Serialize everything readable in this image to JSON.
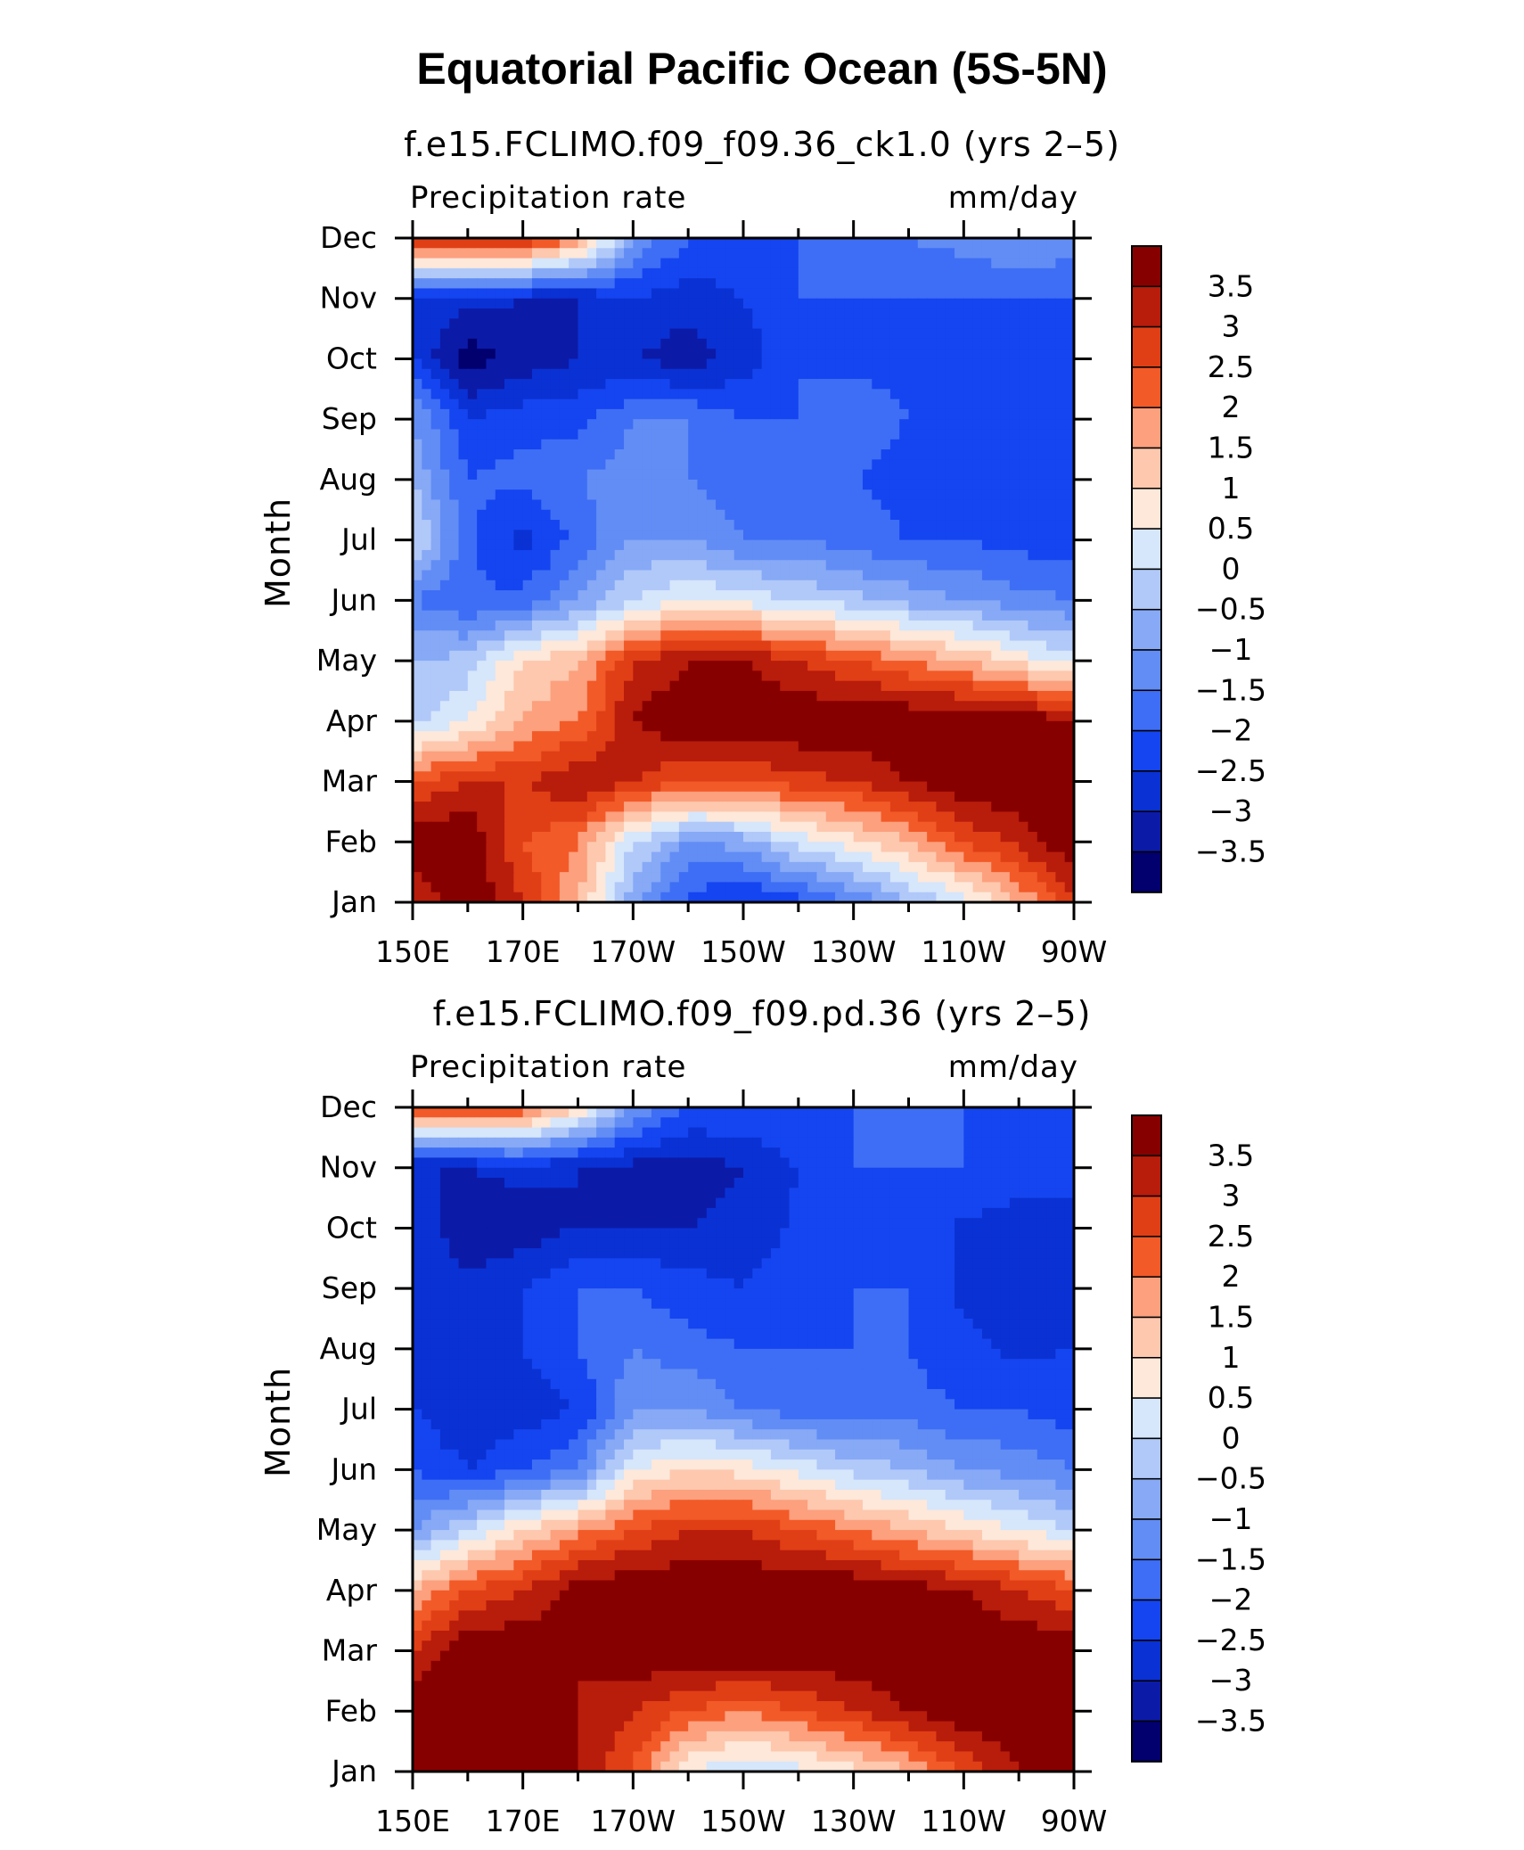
{
  "main_title": "Equatorial Pacific Ocean (5S-5N)",
  "chart_data": [
    {
      "type": "heatmap",
      "title": "f.e15.FCLIMO.f09_f09.36_ck1.0 (yrs 2–5)",
      "left_label": "Precipitation rate",
      "right_label": "mm/day",
      "xlabel": "",
      "ylabel": "Month",
      "x_ticks": [
        "150E",
        "170E",
        "170W",
        "150W",
        "130W",
        "110W",
        "90W"
      ],
      "x_lon": [
        150,
        170,
        190,
        210,
        230,
        250,
        270
      ],
      "xlim": [
        150,
        270
      ],
      "y_ticks": [
        "Jan",
        "Feb",
        "Mar",
        "Apr",
        "May",
        "Jun",
        "Jul",
        "Aug",
        "Sep",
        "Oct",
        "Nov",
        "Dec"
      ],
      "ylim": [
        1,
        12
      ],
      "colorbar": {
        "levels": [
          -3.5,
          -3,
          -2.5,
          -2,
          -1.5,
          -1,
          -0.5,
          0,
          0.5,
          1,
          1.5,
          2,
          2.5,
          3,
          3.5
        ],
        "labels": [
          "−3.5",
          "−3",
          "−2.5",
          "−2",
          "−1.5",
          "−1",
          "−0.5",
          "0",
          "0.5",
          "1",
          "1.5",
          "2",
          "2.5",
          "3",
          "3.5"
        ],
        "colors": [
          "#02006e",
          "#0c1aa8",
          "#0a31d3",
          "#1545f0",
          "#2456ff",
          "#3e6ef5",
          "#628df5",
          "#87a9f6",
          "#b1c9f9",
          "#d6e6fb",
          "#fde8da",
          "#fdc8ae",
          "#fca07e",
          "#fb7a4c",
          "#f25a28",
          "#e03f16",
          "#b81c0b",
          "#870000"
        ]
      },
      "lon": [
        150,
        160,
        170,
        180,
        190,
        200,
        210,
        220,
        230,
        240,
        250,
        260,
        270
      ],
      "months": [
        "Jan",
        "Feb",
        "Mar",
        "Apr",
        "May",
        "Jun",
        "Jul",
        "Aug",
        "Sep",
        "Oct",
        "Nov",
        "Dec"
      ],
      "values": [
        [
          3.0,
          4.0,
          3.0,
          1.5,
          -0.8,
          -2.2,
          -2.6,
          -2.2,
          -1.5,
          -0.6,
          0.3,
          1.5,
          2.8
        ],
        [
          4.0,
          4.0,
          2.5,
          2.0,
          0.0,
          -1.0,
          -0.8,
          0.2,
          0.8,
          1.5,
          2.5,
          3.2,
          4.0
        ],
        [
          2.5,
          3.0,
          3.0,
          3.5,
          3.0,
          2.5,
          2.5,
          2.8,
          3.0,
          3.5,
          4.0,
          4.0,
          4.0
        ],
        [
          -0.2,
          0.5,
          1.5,
          2.0,
          3.5,
          4.0,
          4.0,
          4.0,
          4.0,
          4.0,
          4.0,
          4.0,
          3.5
        ],
        [
          -0.5,
          -0.3,
          1.0,
          1.5,
          3.0,
          3.5,
          3.5,
          3.0,
          2.5,
          2.0,
          1.5,
          0.8,
          0.2
        ],
        [
          -1.5,
          -2.0,
          -1.8,
          -1.0,
          0.0,
          0.5,
          0.3,
          0.0,
          -0.3,
          -0.7,
          -1.0,
          -1.3,
          -1.5
        ],
        [
          0.2,
          -1.8,
          -2.8,
          -1.8,
          -1.0,
          -1.0,
          -1.5,
          -1.5,
          -1.8,
          -2.0,
          -2.0,
          -2.2,
          -2.3
        ],
        [
          -0.5,
          -2.0,
          -1.8,
          -1.5,
          -1.3,
          -1.5,
          -1.8,
          -1.8,
          -2.0,
          -2.2,
          -2.3,
          -2.4,
          -2.5
        ],
        [
          -1.0,
          -2.5,
          -2.2,
          -2.2,
          -1.5,
          -1.5,
          -2.0,
          -2.0,
          -1.8,
          -2.0,
          -2.1,
          -2.2,
          -2.5
        ],
        [
          -2.5,
          -3.8,
          -3.3,
          -3.0,
          -3.0,
          -3.3,
          -2.8,
          -2.0,
          -2.1,
          -2.1,
          -2.2,
          -2.2,
          -2.5
        ],
        [
          -2.8,
          -2.8,
          -3.0,
          -3.0,
          -2.5,
          -2.8,
          -2.5,
          -2.0,
          -2.0,
          -2.0,
          -2.0,
          -2.0,
          -2.0
        ],
        [
          3.0,
          3.5,
          3.2,
          2.0,
          -1.0,
          -2.0,
          -2.0,
          -2.0,
          -1.8,
          -1.5,
          -1.3,
          -1.0,
          -1.2
        ]
      ]
    },
    {
      "type": "heatmap",
      "title": "f.e15.FCLIMO.f09_f09.pd.36 (yrs 2–5)",
      "left_label": "Precipitation rate",
      "right_label": "mm/day",
      "xlabel": "",
      "ylabel": "Month",
      "x_ticks": [
        "150E",
        "170E",
        "170W",
        "150W",
        "130W",
        "110W",
        "90W"
      ],
      "x_lon": [
        150,
        170,
        190,
        210,
        230,
        250,
        270
      ],
      "xlim": [
        150,
        270
      ],
      "y_ticks": [
        "Jan",
        "Feb",
        "Mar",
        "Apr",
        "May",
        "Jun",
        "Jul",
        "Aug",
        "Sep",
        "Oct",
        "Nov",
        "Dec"
      ],
      "ylim": [
        1,
        12
      ],
      "colorbar": {
        "levels": [
          -3.5,
          -3,
          -2.5,
          -2,
          -1.5,
          -1,
          -0.5,
          0,
          0.5,
          1,
          1.5,
          2,
          2.5,
          3,
          3.5
        ],
        "labels": [
          "−3.5",
          "−3",
          "−2.5",
          "−2",
          "−1.5",
          "−1",
          "−0.5",
          "0",
          "0.5",
          "1",
          "1.5",
          "2",
          "2.5",
          "3",
          "3.5"
        ],
        "colors": [
          "#02006e",
          "#0c1aa8",
          "#0a31d3",
          "#1545f0",
          "#2456ff",
          "#3e6ef5",
          "#628df5",
          "#87a9f6",
          "#b1c9f9",
          "#d6e6fb",
          "#fde8da",
          "#fdc8ae",
          "#fca07e",
          "#fb7a4c",
          "#f25a28",
          "#e03f16",
          "#b81c0b",
          "#870000"
        ]
      },
      "lon": [
        150,
        160,
        170,
        180,
        190,
        200,
        210,
        220,
        230,
        240,
        250,
        260,
        270
      ],
      "months": [
        "Jan",
        "Feb",
        "Mar",
        "Apr",
        "May",
        "Jun",
        "Jul",
        "Aug",
        "Sep",
        "Oct",
        "Nov",
        "Dec"
      ],
      "values": [
        [
          4.0,
          4.0,
          4.0,
          3.5,
          2.5,
          0.5,
          0.0,
          0.3,
          0.8,
          1.5,
          2.5,
          3.5,
          4.0
        ],
        [
          4.0,
          4.0,
          4.0,
          3.5,
          3.0,
          2.5,
          2.0,
          2.5,
          3.0,
          3.5,
          4.0,
          4.0,
          4.0
        ],
        [
          3.0,
          4.0,
          4.0,
          3.5,
          4.0,
          4.0,
          4.0,
          4.0,
          4.0,
          4.0,
          4.0,
          4.0,
          4.0
        ],
        [
          1.5,
          2.5,
          3.0,
          3.8,
          4.0,
          4.0,
          4.0,
          4.0,
          4.0,
          3.8,
          3.5,
          3.0,
          2.5
        ],
        [
          -1.0,
          0.0,
          1.0,
          1.8,
          2.5,
          3.0,
          3.0,
          2.5,
          2.0,
          1.5,
          1.0,
          0.5,
          0.0
        ],
        [
          -2.0,
          -2.5,
          -2.0,
          -1.5,
          0.5,
          1.0,
          0.8,
          0.3,
          -0.2,
          -0.5,
          -1.0,
          -1.2,
          -1.5
        ],
        [
          -2.5,
          -3.0,
          -2.8,
          -2.5,
          -1.0,
          -1.0,
          -1.5,
          -1.8,
          -1.8,
          -1.8,
          -2.0,
          -2.0,
          -2.3
        ],
        [
          -2.5,
          -3.0,
          -2.5,
          -2.0,
          -1.5,
          -1.8,
          -2.0,
          -2.0,
          -2.0,
          -2.0,
          -2.4,
          -2.6,
          -2.5
        ],
        [
          -2.5,
          -2.8,
          -2.5,
          -2.0,
          -2.0,
          -2.3,
          -2.5,
          -2.2,
          -2.0,
          -2.0,
          -2.6,
          -2.7,
          -2.6
        ],
        [
          -2.5,
          -3.5,
          -3.3,
          -3.0,
          -3.0,
          -3.0,
          -2.8,
          -2.4,
          -2.0,
          -2.2,
          -2.6,
          -2.7,
          -2.6
        ],
        [
          -3.0,
          -3.0,
          -2.8,
          -3.0,
          -3.2,
          -3.3,
          -3.0,
          -2.5,
          -2.0,
          -2.0,
          -2.0,
          -2.3,
          -2.4
        ],
        [
          2.5,
          2.8,
          2.5,
          1.0,
          -1.0,
          -2.0,
          -2.0,
          -2.0,
          -2.0,
          -2.0,
          -2.0,
          -2.0,
          -2.0
        ]
      ]
    }
  ]
}
